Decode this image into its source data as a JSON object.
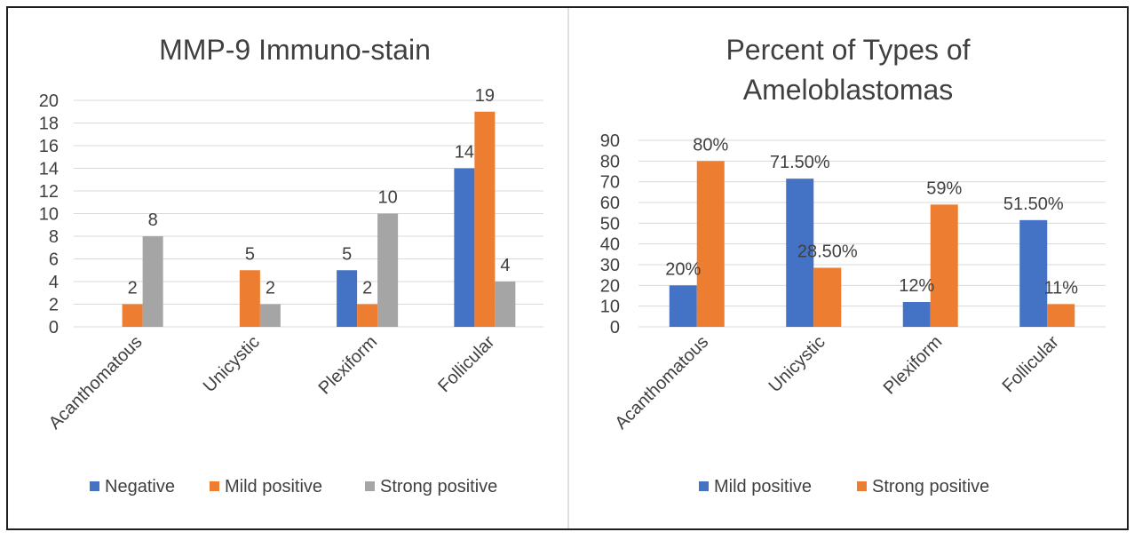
{
  "colors": {
    "blue": "#4472C4",
    "orange": "#ED7D31",
    "gray": "#A5A5A5",
    "grid": "#D9D9D9",
    "frame": "#1f1f1f"
  },
  "chart_data": [
    {
      "type": "bar",
      "title": "MMP-9 Immuno-stain",
      "categories": [
        "Acanthomatous",
        "Unicystic",
        "Plexiform",
        "Follicular"
      ],
      "ylim": [
        0,
        20
      ],
      "yticks": [
        "0",
        "2",
        "4",
        "6",
        "8",
        "10",
        "12",
        "14",
        "16",
        "18",
        "20"
      ],
      "grid": true,
      "legend": "bottom",
      "series": [
        {
          "name": "Negative",
          "color": "#4472C4",
          "values": [
            null,
            null,
            5,
            14
          ],
          "labels": [
            "",
            "",
            "5",
            "14"
          ]
        },
        {
          "name": "Mild positive",
          "color": "#ED7D31",
          "values": [
            2,
            5,
            2,
            19
          ],
          "labels": [
            "2",
            "5",
            "2",
            "19"
          ]
        },
        {
          "name": "Strong positive",
          "color": "#A5A5A5",
          "values": [
            8,
            2,
            10,
            4
          ],
          "labels": [
            "8",
            "2",
            "10",
            "4"
          ]
        }
      ]
    },
    {
      "type": "bar",
      "title": "Percent of Types of Ameloblastomas",
      "title_lines": [
        "Percent of Types of",
        "Ameloblastomas"
      ],
      "categories": [
        "Acanthomatous",
        "Unicystic",
        "Plexiform",
        "Follicular"
      ],
      "ylim": [
        0,
        90
      ],
      "yticks": [
        "0",
        "10",
        "20",
        "30",
        "40",
        "50",
        "60",
        "70",
        "80",
        "90"
      ],
      "grid": true,
      "legend": "bottom",
      "series": [
        {
          "name": "Mild positive",
          "color": "#4472C4",
          "values": [
            20,
            71.5,
            12,
            51.5
          ],
          "labels": [
            "20%",
            "71.50%",
            "12%",
            "51.50%"
          ]
        },
        {
          "name": "Strong positive",
          "color": "#ED7D31",
          "values": [
            80,
            28.5,
            59,
            11
          ],
          "labels": [
            "80%",
            "28.50%",
            "59%",
            "11%"
          ]
        }
      ]
    }
  ]
}
